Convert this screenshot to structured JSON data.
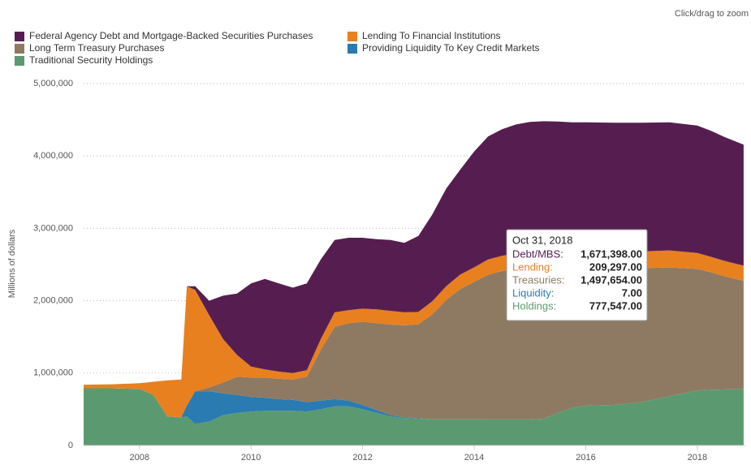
{
  "chart_data": {
    "type": "stacked-area",
    "zoom_hint": "Click/drag to zoom",
    "y_label": "Millions of dollars",
    "x": [
      2007.0,
      2007.5,
      2008.0,
      2008.25,
      2008.5,
      2008.75,
      2008.85,
      2009.0,
      2009.25,
      2009.5,
      2009.75,
      2010.0,
      2010.25,
      2010.5,
      2010.75,
      2011.0,
      2011.25,
      2011.5,
      2011.75,
      2012.0,
      2012.25,
      2012.5,
      2012.75,
      2013.0,
      2013.25,
      2013.5,
      2013.75,
      2014.0,
      2014.25,
      2014.5,
      2014.75,
      2015.0,
      2015.25,
      2015.5,
      2015.75,
      2016.0,
      2016.5,
      2017.0,
      2017.5,
      2018.0,
      2018.25,
      2018.5,
      2018.83
    ],
    "series": [
      {
        "name": "Federal Agency Debt and Mortgage-Backed Securities Purchases",
        "color": "#561e50",
        "values": [
          0,
          0,
          0,
          0,
          0,
          0,
          0,
          50000,
          200000,
          600000,
          850000,
          1150000,
          1250000,
          1220000,
          1180000,
          1200000,
          1100000,
          1000000,
          1000000,
          980000,
          970000,
          980000,
          960000,
          1050000,
          1200000,
          1350000,
          1450000,
          1600000,
          1700000,
          1750000,
          1780000,
          1800000,
          1810000,
          1800000,
          1790000,
          1790000,
          1780000,
          1780000,
          1770000,
          1760000,
          1740000,
          1710000,
          1671398
        ]
      },
      {
        "name": "Lending To Financial Institutions",
        "color": "#e8801f",
        "values": [
          50000,
          55000,
          80000,
          180000,
          500000,
          520000,
          1650000,
          1400000,
          1000000,
          600000,
          300000,
          150000,
          110000,
          100000,
          90000,
          90000,
          150000,
          200000,
          180000,
          180000,
          190000,
          190000,
          180000,
          170000,
          180000,
          190000,
          200000,
          200000,
          210000,
          210000,
          215000,
          220000,
          220000,
          225000,
          225000,
          225000,
          230000,
          230000,
          235000,
          220000,
          215000,
          212000,
          209297
        ]
      },
      {
        "name": "Long Term Treasury Purchases",
        "color": "#8e7a62",
        "values": [
          0,
          0,
          0,
          0,
          0,
          0,
          0,
          0,
          50000,
          150000,
          250000,
          270000,
          280000,
          280000,
          280000,
          350000,
          700000,
          1000000,
          1070000,
          1150000,
          1200000,
          1250000,
          1270000,
          1300000,
          1450000,
          1650000,
          1800000,
          1900000,
          2000000,
          2050000,
          2080000,
          2090000,
          2080000,
          2000000,
          1930000,
          1900000,
          1890000,
          1850000,
          1780000,
          1680000,
          1620000,
          1560000,
          1497654
        ]
      },
      {
        "name": "Providing Liquidity To Key Credit Markets",
        "color": "#2a7bb2",
        "values": [
          0,
          0,
          0,
          0,
          0,
          0,
          150000,
          450000,
          420000,
          300000,
          250000,
          200000,
          180000,
          160000,
          150000,
          130000,
          120000,
          100000,
          80000,
          60000,
          40000,
          20000,
          10000,
          5000,
          3000,
          2000,
          1000,
          500,
          300,
          200,
          100,
          50,
          30,
          20,
          15,
          12,
          10,
          10,
          9,
          8,
          8,
          7,
          7
        ]
      },
      {
        "name": "Traditional Security Holdings",
        "color": "#5b9a70",
        "values": [
          790000,
          790000,
          780000,
          700000,
          400000,
          390000,
          400000,
          300000,
          330000,
          420000,
          450000,
          470000,
          480000,
          480000,
          480000,
          470000,
          500000,
          540000,
          540000,
          500000,
          450000,
          400000,
          380000,
          370000,
          360000,
          360000,
          360000,
          360000,
          360000,
          360000,
          360000,
          360000,
          370000,
          450000,
          520000,
          550000,
          560000,
          600000,
          680000,
          760000,
          770000,
          775000,
          777547
        ]
      }
    ],
    "xlim": [
      2007.0,
      2018.86
    ],
    "xticks": [
      2008,
      2010,
      2012,
      2014,
      2016,
      2018
    ],
    "ylim": [
      0,
      5000000
    ],
    "yticks": [
      0,
      {
        "value": 1000000,
        "label": "1,000,000"
      },
      {
        "value": 2000000,
        "label": "2,000,000"
      },
      {
        "value": 3000000,
        "label": "3,000,000"
      },
      {
        "value": 4000000,
        "label": "4,000,000"
      },
      {
        "value": 5000000,
        "label": "5,000,000"
      }
    ],
    "grid": true,
    "tooltip": {
      "date": "Oct 31, 2018",
      "items": [
        {
          "label": "Debt/MBS:",
          "value": "1,671,398.00",
          "color": "#561e50"
        },
        {
          "label": "Lending:",
          "value": "209,297.00",
          "color": "#e8801f"
        },
        {
          "label": "Treasuries:",
          "value": "1,497,654.00",
          "color": "#8e7a62"
        },
        {
          "label": "Liquidity:",
          "value": "7.00",
          "color": "#2a7bb2"
        },
        {
          "label": "Holdings:",
          "value": "777,547.00",
          "color": "#5b9a70"
        }
      ]
    }
  }
}
